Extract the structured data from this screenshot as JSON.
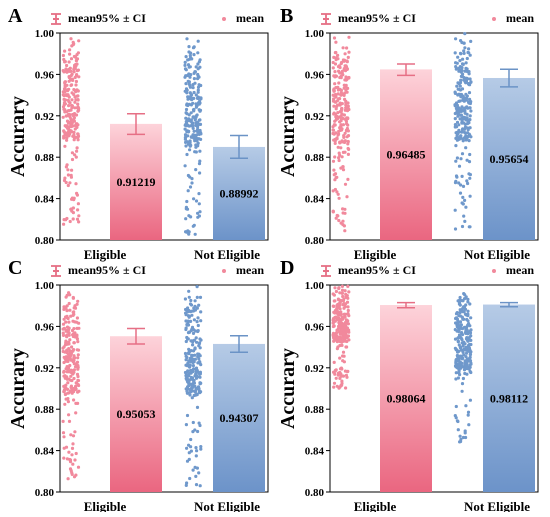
{
  "colors": {
    "eligible_top": "#fdd3da",
    "eligible_bottom": "#ea6680",
    "eligible_dot": "#f1899c",
    "eligible_err": "#e66f85",
    "not_eligible_top": "#b6cbe6",
    "not_eligible_bottom": "#6c93c9",
    "not_eligible_dot": "#6f98cb",
    "not_eligible_err": "#6b93c6"
  },
  "legend": {
    "ci_label": "mean95% ± CI",
    "mean_label": "mean"
  },
  "chart_data": [
    {
      "panel": "A",
      "type": "bar",
      "ylabel": "Accurary",
      "ylim": [
        0.8,
        1.0
      ],
      "yticks": [
        "0.80",
        "0.84",
        "0.88",
        "0.92",
        "0.96",
        "1.00"
      ],
      "categories": [
        "Eligible",
        "Not Eligible"
      ],
      "values": [
        0.91219,
        0.88992
      ],
      "value_labels": [
        "0.91219",
        "0.88992"
      ],
      "ci": [
        [
          0.902,
          0.922
        ],
        [
          0.879,
          0.901
        ]
      ],
      "scatter_range": [
        [
          0.815,
          1.0
        ],
        [
          0.805,
          0.995
        ]
      ],
      "legend_position": "top"
    },
    {
      "panel": "B",
      "type": "bar",
      "ylabel": "Accurary",
      "ylim": [
        0.8,
        1.0
      ],
      "yticks": [
        "0.80",
        "0.84",
        "0.88",
        "0.92",
        "0.96",
        "1.00"
      ],
      "categories": [
        "Eligible",
        "Not Eligible"
      ],
      "values": [
        0.96485,
        0.95654
      ],
      "value_labels": [
        "0.96485",
        "0.95654"
      ],
      "ci": [
        [
          0.959,
          0.97
        ],
        [
          0.948,
          0.965
        ]
      ],
      "scatter_range": [
        [
          0.805,
          1.0
        ],
        [
          0.81,
          1.0
        ]
      ],
      "legend_position": "top"
    },
    {
      "panel": "C",
      "type": "bar",
      "ylabel": "Accurary",
      "ylim": [
        0.8,
        1.0
      ],
      "yticks": [
        "0.80",
        "0.84",
        "0.88",
        "0.92",
        "0.96",
        "1.00"
      ],
      "categories": [
        "Eligible",
        "Not Eligible"
      ],
      "values": [
        0.95053,
        0.94307
      ],
      "value_labels": [
        "0.95053",
        "0.94307"
      ],
      "ci": [
        [
          0.943,
          0.958
        ],
        [
          0.935,
          0.951
        ]
      ],
      "scatter_range": [
        [
          0.81,
          1.0
        ],
        [
          0.805,
          1.0
        ]
      ],
      "legend_position": "top"
    },
    {
      "panel": "D",
      "type": "bar",
      "ylabel": "Accurary",
      "ylim": [
        0.8,
        1.0
      ],
      "yticks": [
        "0.80",
        "0.84",
        "0.88",
        "0.92",
        "0.96",
        "1.00"
      ],
      "categories": [
        "Eligible",
        "Not Eligible"
      ],
      "values": [
        0.98064,
        0.98112
      ],
      "value_labels": [
        "0.98064",
        "0.98112"
      ],
      "ci": [
        [
          0.978,
          0.983
        ],
        [
          0.979,
          0.983
        ]
      ],
      "scatter_range": [
        [
          0.9,
          1.0
        ],
        [
          0.845,
          1.0
        ]
      ],
      "legend_position": "top"
    }
  ]
}
